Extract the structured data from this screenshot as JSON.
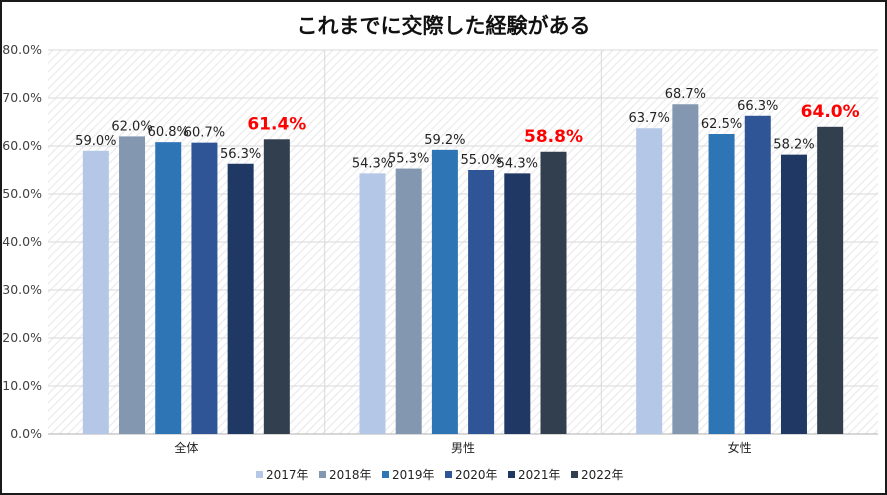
{
  "chart_data": {
    "type": "bar",
    "title": "これまでに交際した経験がある",
    "categories": [
      "全体",
      "男性",
      "女性"
    ],
    "series": [
      {
        "name": "2017年",
        "color": "#b4c7e7",
        "values": [
          59.0,
          54.3,
          63.7
        ]
      },
      {
        "name": "2018年",
        "color": "#8497b0",
        "values": [
          62.0,
          55.3,
          68.7
        ]
      },
      {
        "name": "2019年",
        "color": "#2e75b6",
        "values": [
          60.8,
          59.2,
          62.5
        ]
      },
      {
        "name": "2020年",
        "color": "#2f5597",
        "values": [
          60.7,
          55.0,
          66.3
        ]
      },
      {
        "name": "2021年",
        "color": "#203864",
        "values": [
          56.3,
          54.3,
          58.2
        ]
      },
      {
        "name": "2022年",
        "color": "#323f4f",
        "values": [
          61.4,
          58.8,
          64.0
        ]
      }
    ],
    "data_labels": [
      [
        "59.0%",
        "54.3%",
        "63.7%"
      ],
      [
        "62.0%",
        "55.3%",
        "68.7%"
      ],
      [
        "60.8%",
        "59.2%",
        "62.5%"
      ],
      [
        "60.7%",
        "55.0%",
        "66.3%"
      ],
      [
        "56.3%",
        "54.3%",
        "58.2%"
      ],
      [
        "61.4%",
        "58.8%",
        "64.0%"
      ]
    ],
    "highlight_series": "2022年",
    "highlight_color": "#ff0000",
    "ylim": [
      0,
      80
    ],
    "yticks": [
      0,
      10,
      20,
      30,
      40,
      50,
      60,
      70,
      80
    ],
    "ytick_labels": [
      "0.0%",
      "10.0%",
      "20.0%",
      "30.0%",
      "40.0%",
      "50.0%",
      "60.0%",
      "70.0%",
      "80.0%"
    ],
    "xlabel": "",
    "ylabel": "",
    "grid": true,
    "legend_position": "bottom"
  }
}
